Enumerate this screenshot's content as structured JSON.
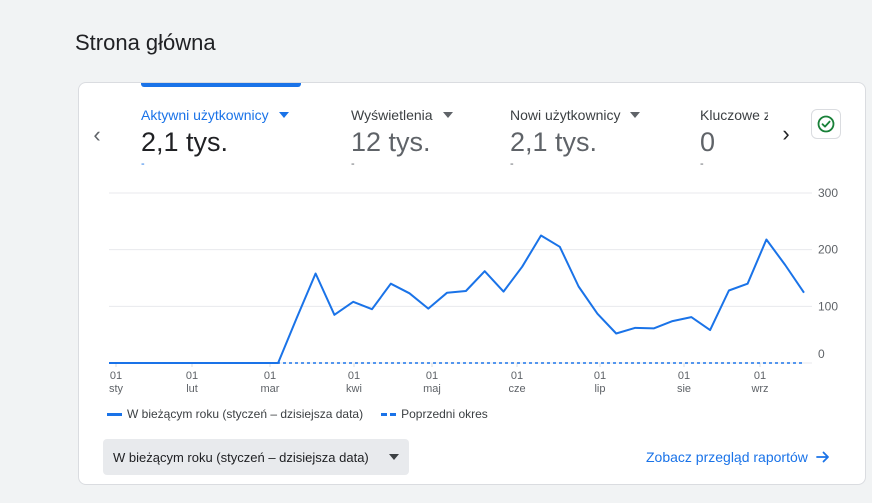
{
  "page": {
    "title": "Strona główna"
  },
  "metrics": [
    {
      "label": "Aktywni użytkownicy",
      "value": "2,1 tys.",
      "sub": "-"
    },
    {
      "label": "Wyświetlenia",
      "value": "12 tys.",
      "sub": "-"
    },
    {
      "label": "Nowi użytkownicy",
      "value": "2,1 tys.",
      "sub": "-"
    },
    {
      "label": "Kluczowe zdarzenia",
      "value": "0",
      "sub": "-"
    }
  ],
  "nav": {
    "prev_icon": "chevron-left-icon",
    "next_icon": "chevron-right-icon"
  },
  "status_icon": "check-circle-icon",
  "chart_data": {
    "type": "line",
    "y_ticks": [
      "300",
      "200",
      "100",
      "0"
    ],
    "ylim": [
      0,
      300
    ],
    "x_ticks": [
      {
        "day": "01",
        "month": "sty"
      },
      {
        "day": "01",
        "month": "lut"
      },
      {
        "day": "01",
        "month": "mar"
      },
      {
        "day": "01",
        "month": "kwi"
      },
      {
        "day": "01",
        "month": "maj"
      },
      {
        "day": "01",
        "month": "cze"
      },
      {
        "day": "01",
        "month": "lip"
      },
      {
        "day": "01",
        "month": "sie"
      },
      {
        "day": "01",
        "month": "wrz"
      }
    ],
    "series": [
      {
        "name": "W bieżącym roku (styczeń – dzisiejsza data)",
        "style": "solid",
        "values": [
          0,
          0,
          0,
          0,
          0,
          0,
          0,
          0,
          0,
          0,
          80,
          158,
          85,
          108,
          95,
          140,
          123,
          96,
          124,
          127,
          162,
          126,
          170,
          225,
          205,
          135,
          87,
          52,
          62,
          61,
          74,
          81,
          58,
          128,
          140,
          218,
          173,
          124
        ]
      },
      {
        "name": "Poprzedni okres",
        "style": "dashed",
        "values": [
          0,
          0,
          0,
          0,
          0,
          0,
          0,
          0,
          0,
          0,
          0,
          0,
          0,
          0,
          0,
          0,
          0,
          0,
          0,
          0,
          0,
          0,
          0,
          0,
          0,
          0,
          0,
          0,
          0,
          0,
          0,
          0,
          0,
          0,
          0,
          0,
          0,
          0
        ]
      }
    ],
    "grid": true,
    "legend": "bottom-left"
  },
  "footer": {
    "date_range": "W bieżącym roku (styczeń – dzisiejsza data)",
    "reports_link": "Zobacz przegląd raportów"
  },
  "colors": {
    "accent": "#1a73e8",
    "success": "#188038"
  }
}
